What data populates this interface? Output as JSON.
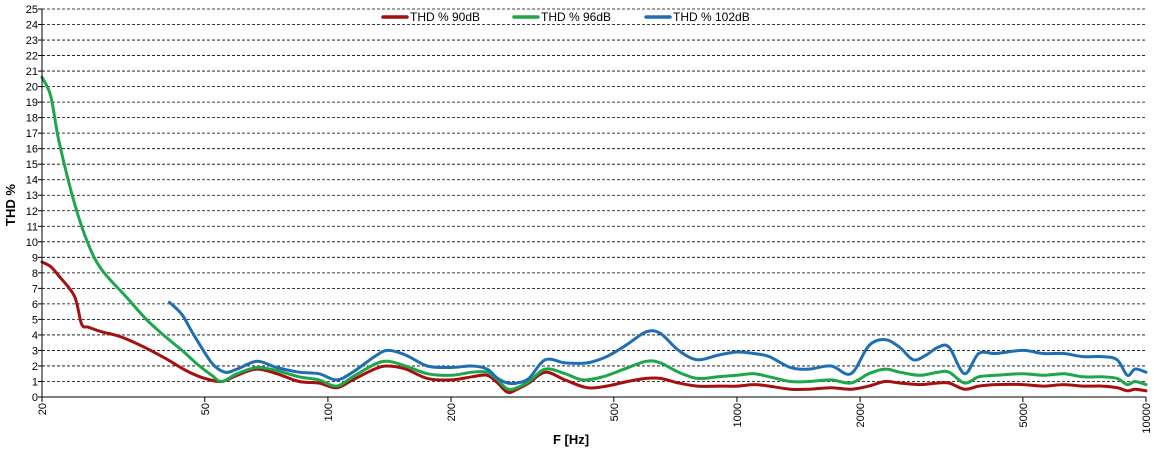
{
  "chart_data": {
    "type": "line",
    "xlabel": "F [Hz]",
    "ylabel": "THD %",
    "xscale": "log",
    "xlim": [
      20,
      10000
    ],
    "ylim": [
      0,
      25
    ],
    "grid": "horizontal dashed",
    "legend_position": "top",
    "x_ticks": [
      20,
      50,
      100,
      200,
      500,
      1000,
      2000,
      5000,
      10000
    ],
    "y_ticks": [
      0,
      1,
      2,
      3,
      4,
      5,
      6,
      7,
      8,
      9,
      10,
      11,
      12,
      13,
      14,
      15,
      16,
      17,
      18,
      19,
      20,
      21,
      22,
      23,
      24,
      25
    ],
    "series": [
      {
        "name": "THD % 90dB",
        "color": "#a50f0f",
        "points": [
          [
            20,
            8.7
          ],
          [
            21,
            8.4
          ],
          [
            22,
            7.8
          ],
          [
            24,
            6.5
          ],
          [
            25,
            4.7
          ],
          [
            26,
            4.5
          ],
          [
            28,
            4.2
          ],
          [
            31,
            3.9
          ],
          [
            35,
            3.3
          ],
          [
            40,
            2.5
          ],
          [
            45,
            1.7
          ],
          [
            50,
            1.2
          ],
          [
            55,
            1.0
          ],
          [
            60,
            1.4
          ],
          [
            67,
            1.8
          ],
          [
            75,
            1.5
          ],
          [
            85,
            1.0
          ],
          [
            95,
            0.9
          ],
          [
            105,
            0.6
          ],
          [
            115,
            1.1
          ],
          [
            130,
            1.8
          ],
          [
            140,
            2.0
          ],
          [
            155,
            1.8
          ],
          [
            175,
            1.2
          ],
          [
            200,
            1.1
          ],
          [
            225,
            1.3
          ],
          [
            245,
            1.4
          ],
          [
            260,
            0.9
          ],
          [
            275,
            0.3
          ],
          [
            290,
            0.5
          ],
          [
            310,
            0.9
          ],
          [
            340,
            1.6
          ],
          [
            380,
            1.1
          ],
          [
            430,
            0.6
          ],
          [
            480,
            0.7
          ],
          [
            540,
            1.0
          ],
          [
            600,
            1.2
          ],
          [
            650,
            1.2
          ],
          [
            720,
            0.9
          ],
          [
            800,
            0.7
          ],
          [
            900,
            0.7
          ],
          [
            1000,
            0.7
          ],
          [
            1100,
            0.8
          ],
          [
            1200,
            0.7
          ],
          [
            1350,
            0.5
          ],
          [
            1500,
            0.5
          ],
          [
            1700,
            0.6
          ],
          [
            1900,
            0.5
          ],
          [
            2100,
            0.7
          ],
          [
            2300,
            1.0
          ],
          [
            2500,
            0.9
          ],
          [
            2800,
            0.8
          ],
          [
            3100,
            0.9
          ],
          [
            3300,
            0.9
          ],
          [
            3600,
            0.5
          ],
          [
            3900,
            0.7
          ],
          [
            4300,
            0.8
          ],
          [
            5000,
            0.8
          ],
          [
            5600,
            0.7
          ],
          [
            6300,
            0.8
          ],
          [
            7000,
            0.7
          ],
          [
            7800,
            0.7
          ],
          [
            8500,
            0.6
          ],
          [
            9000,
            0.4
          ],
          [
            9400,
            0.5
          ],
          [
            10000,
            0.4
          ]
        ]
      },
      {
        "name": "THD % 96dB",
        "color": "#1ea64a",
        "points": [
          [
            20,
            20.6
          ],
          [
            21,
            19.4
          ],
          [
            22,
            16.5
          ],
          [
            24,
            12.5
          ],
          [
            26,
            9.8
          ],
          [
            28,
            8.2
          ],
          [
            32,
            6.5
          ],
          [
            36,
            5.0
          ],
          [
            40,
            3.9
          ],
          [
            44,
            3.0
          ],
          [
            48,
            2.1
          ],
          [
            52,
            1.4
          ],
          [
            55,
            1.0
          ],
          [
            60,
            1.5
          ],
          [
            67,
            1.9
          ],
          [
            75,
            1.7
          ],
          [
            85,
            1.3
          ],
          [
            95,
            1.1
          ],
          [
            105,
            0.7
          ],
          [
            115,
            1.3
          ],
          [
            130,
            2.1
          ],
          [
            140,
            2.3
          ],
          [
            155,
            2.0
          ],
          [
            175,
            1.5
          ],
          [
            200,
            1.4
          ],
          [
            225,
            1.6
          ],
          [
            245,
            1.6
          ],
          [
            260,
            1.1
          ],
          [
            275,
            0.5
          ],
          [
            290,
            0.6
          ],
          [
            310,
            1.0
          ],
          [
            340,
            1.8
          ],
          [
            380,
            1.5
          ],
          [
            420,
            1.1
          ],
          [
            470,
            1.3
          ],
          [
            530,
            1.8
          ],
          [
            600,
            2.3
          ],
          [
            650,
            2.2
          ],
          [
            720,
            1.6
          ],
          [
            800,
            1.2
          ],
          [
            900,
            1.3
          ],
          [
            1000,
            1.4
          ],
          [
            1100,
            1.5
          ],
          [
            1200,
            1.3
          ],
          [
            1350,
            1.0
          ],
          [
            1500,
            1.0
          ],
          [
            1700,
            1.1
          ],
          [
            1900,
            0.9
          ],
          [
            2100,
            1.5
          ],
          [
            2300,
            1.8
          ],
          [
            2500,
            1.6
          ],
          [
            2800,
            1.4
          ],
          [
            3100,
            1.6
          ],
          [
            3300,
            1.6
          ],
          [
            3600,
            0.9
          ],
          [
            3900,
            1.3
          ],
          [
            4300,
            1.4
          ],
          [
            5000,
            1.5
          ],
          [
            5600,
            1.4
          ],
          [
            6300,
            1.5
          ],
          [
            7000,
            1.3
          ],
          [
            7800,
            1.3
          ],
          [
            8500,
            1.2
          ],
          [
            9000,
            0.8
          ],
          [
            9400,
            1.0
          ],
          [
            10000,
            0.8
          ]
        ]
      },
      {
        "name": "THD % 102dB",
        "color": "#1f6eb4",
        "points": [
          [
            41,
            6.1
          ],
          [
            44,
            5.3
          ],
          [
            47,
            4.0
          ],
          [
            52,
            2.2
          ],
          [
            56,
            1.6
          ],
          [
            60,
            1.8
          ],
          [
            67,
            2.3
          ],
          [
            75,
            1.9
          ],
          [
            85,
            1.6
          ],
          [
            95,
            1.5
          ],
          [
            105,
            1.1
          ],
          [
            115,
            1.6
          ],
          [
            130,
            2.6
          ],
          [
            140,
            3.0
          ],
          [
            155,
            2.7
          ],
          [
            175,
            2.0
          ],
          [
            200,
            1.9
          ],
          [
            225,
            2.0
          ],
          [
            245,
            1.8
          ],
          [
            260,
            1.2
          ],
          [
            275,
            0.9
          ],
          [
            290,
            0.9
          ],
          [
            310,
            1.2
          ],
          [
            340,
            2.4
          ],
          [
            380,
            2.2
          ],
          [
            430,
            2.2
          ],
          [
            480,
            2.6
          ],
          [
            540,
            3.4
          ],
          [
            600,
            4.2
          ],
          [
            650,
            4.1
          ],
          [
            720,
            3.0
          ],
          [
            800,
            2.4
          ],
          [
            900,
            2.7
          ],
          [
            1000,
            2.9
          ],
          [
            1100,
            2.8
          ],
          [
            1200,
            2.6
          ],
          [
            1350,
            1.9
          ],
          [
            1500,
            1.8
          ],
          [
            1700,
            2.0
          ],
          [
            1900,
            1.5
          ],
          [
            2100,
            3.3
          ],
          [
            2300,
            3.7
          ],
          [
            2500,
            3.2
          ],
          [
            2700,
            2.4
          ],
          [
            2900,
            2.7
          ],
          [
            3100,
            3.2
          ],
          [
            3300,
            3.2
          ],
          [
            3600,
            1.5
          ],
          [
            3900,
            2.8
          ],
          [
            4300,
            2.8
          ],
          [
            5000,
            3.0
          ],
          [
            5600,
            2.8
          ],
          [
            6300,
            2.8
          ],
          [
            7000,
            2.6
          ],
          [
            7800,
            2.6
          ],
          [
            8500,
            2.4
          ],
          [
            9000,
            1.4
          ],
          [
            9400,
            1.8
          ],
          [
            10000,
            1.6
          ]
        ]
      }
    ]
  }
}
